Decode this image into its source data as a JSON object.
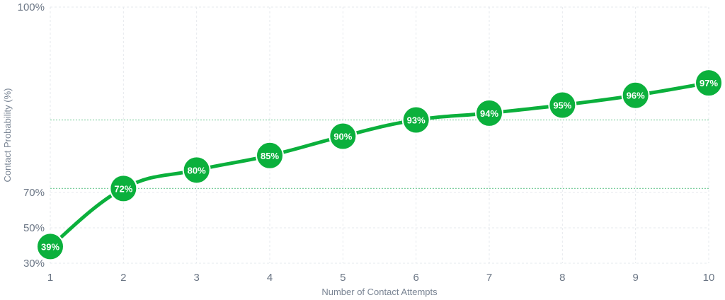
{
  "chart_data": {
    "type": "line",
    "xlabel": "Number of Contact Attempts",
    "ylabel": "Contact Probability (%)",
    "x": [
      1,
      2,
      3,
      4,
      5,
      6,
      7,
      8,
      9,
      10
    ],
    "series": [
      {
        "values": [
          39,
          72,
          80,
          85,
          90,
          93,
          94,
          95,
          96,
          97
        ],
        "data_labels": [
          "39%",
          "72%",
          "80%",
          "85%",
          "90%",
          "93%",
          "94%",
          "95%",
          "96%",
          "97%"
        ]
      }
    ],
    "xlim": [
      1,
      10
    ],
    "ylim": [
      30,
      100
    ],
    "x_ticks": [
      "1",
      "2",
      "3",
      "4",
      "5",
      "6",
      "7",
      "8",
      "9",
      "10"
    ],
    "y_ticks": [
      "30%",
      "50%",
      "70%",
      "100%"
    ],
    "y_scale": "logit",
    "reference_lines": [
      72,
      93
    ],
    "grid": true,
    "colors": {
      "series": "#0bb03c",
      "point_text": "#ffffff",
      "reference_line": "#7fcfa0",
      "grid": "#e6e9ee",
      "tick_text": "#6b7685"
    }
  }
}
